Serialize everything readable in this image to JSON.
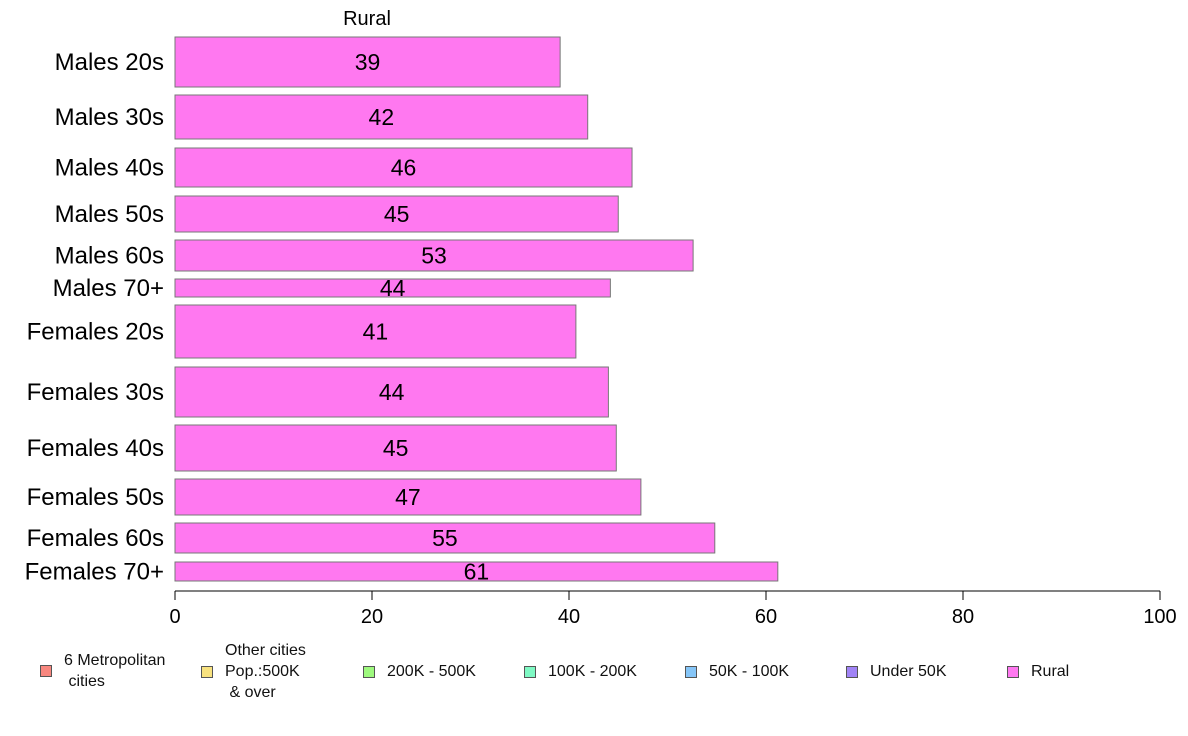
{
  "chart_data": {
    "type": "bar",
    "orientation": "horizontal",
    "title": "Rural",
    "categories": [
      "Males 20s",
      "Males 30s",
      "Males 40s",
      "Males 50s",
      "Males 60s",
      "Males 70+",
      "Females 20s",
      "Females 30s",
      "Females 40s",
      "Females 50s",
      "Females 60s",
      "Females 70+"
    ],
    "values": [
      39.1,
      41.9,
      46.4,
      45.0,
      52.6,
      44.2,
      40.7,
      44.0,
      44.8,
      47.3,
      54.8,
      61.2
    ],
    "value_labels": [
      "39",
      "42",
      "46",
      "45",
      "53",
      "44",
      "41",
      "44",
      "45",
      "47",
      "55",
      "61"
    ],
    "xlim": [
      0,
      100
    ],
    "xticks": [
      "0",
      "20",
      "40",
      "60",
      "80",
      "100"
    ],
    "grid": false,
    "bar_color": "#ff78f0",
    "bar_edge_color": "#777777"
  },
  "legend": {
    "placement": "bottom",
    "items": [
      {
        "label": "6 Metropolitan\n cities",
        "color": "#f8877f"
      },
      {
        "label": "Other cities\nPop.:500K\n & over",
        "color": "#f8e27f"
      },
      {
        "label": "200K - 500K",
        "color": "#9ef97e"
      },
      {
        "label": "100K - 200K",
        "color": "#7ff9c4"
      },
      {
        "label": "50K - 100K",
        "color": "#86c6f8"
      },
      {
        "label": "Under 50K",
        "color": "#a184f6"
      },
      {
        "label": "Rural",
        "color": "#ff78f0"
      }
    ]
  }
}
